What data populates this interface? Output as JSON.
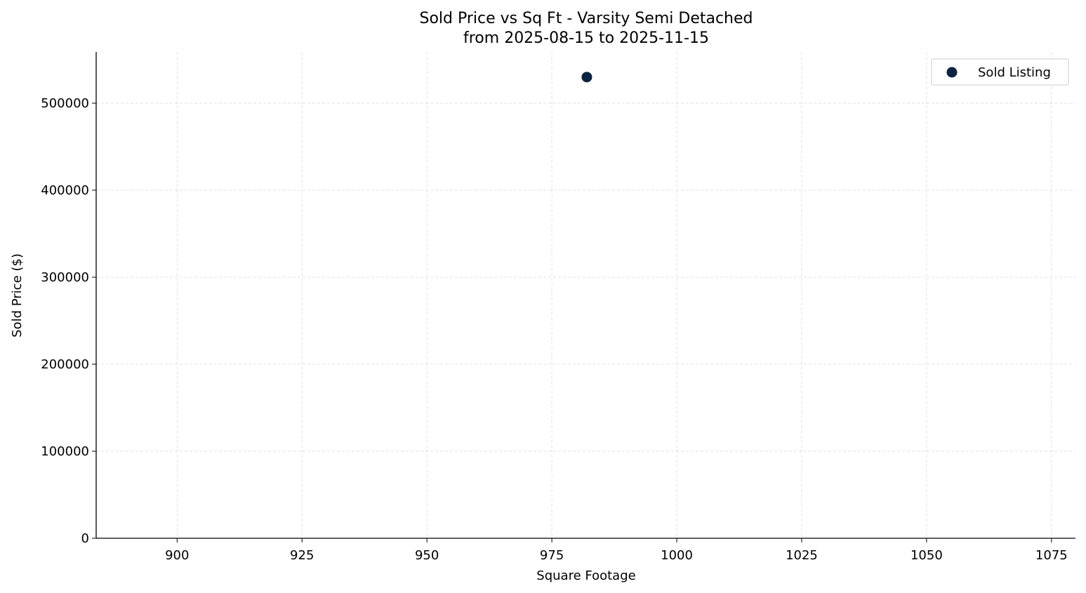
{
  "chart_data": {
    "type": "scatter",
    "title": "Sold Price vs Sq Ft - Varsity Semi Detached",
    "subtitle": "from 2025-08-15 to 2025-11-15",
    "xlabel": "Square Footage",
    "ylabel": "Sold Price ($)",
    "xlim": [
      883.8,
      1079.8
    ],
    "ylim": [
      0,
      558900
    ],
    "xticks": [
      900,
      925,
      950,
      975,
      1000,
      1025,
      1050,
      1075
    ],
    "yticks": [
      0,
      100000,
      200000,
      300000,
      400000,
      500000
    ],
    "grid": true,
    "legend_position": "top-right",
    "series": [
      {
        "name": "Sold Listing",
        "color": "#0b2341",
        "points": [
          {
            "x": 982,
            "y": 530000
          }
        ]
      }
    ]
  }
}
